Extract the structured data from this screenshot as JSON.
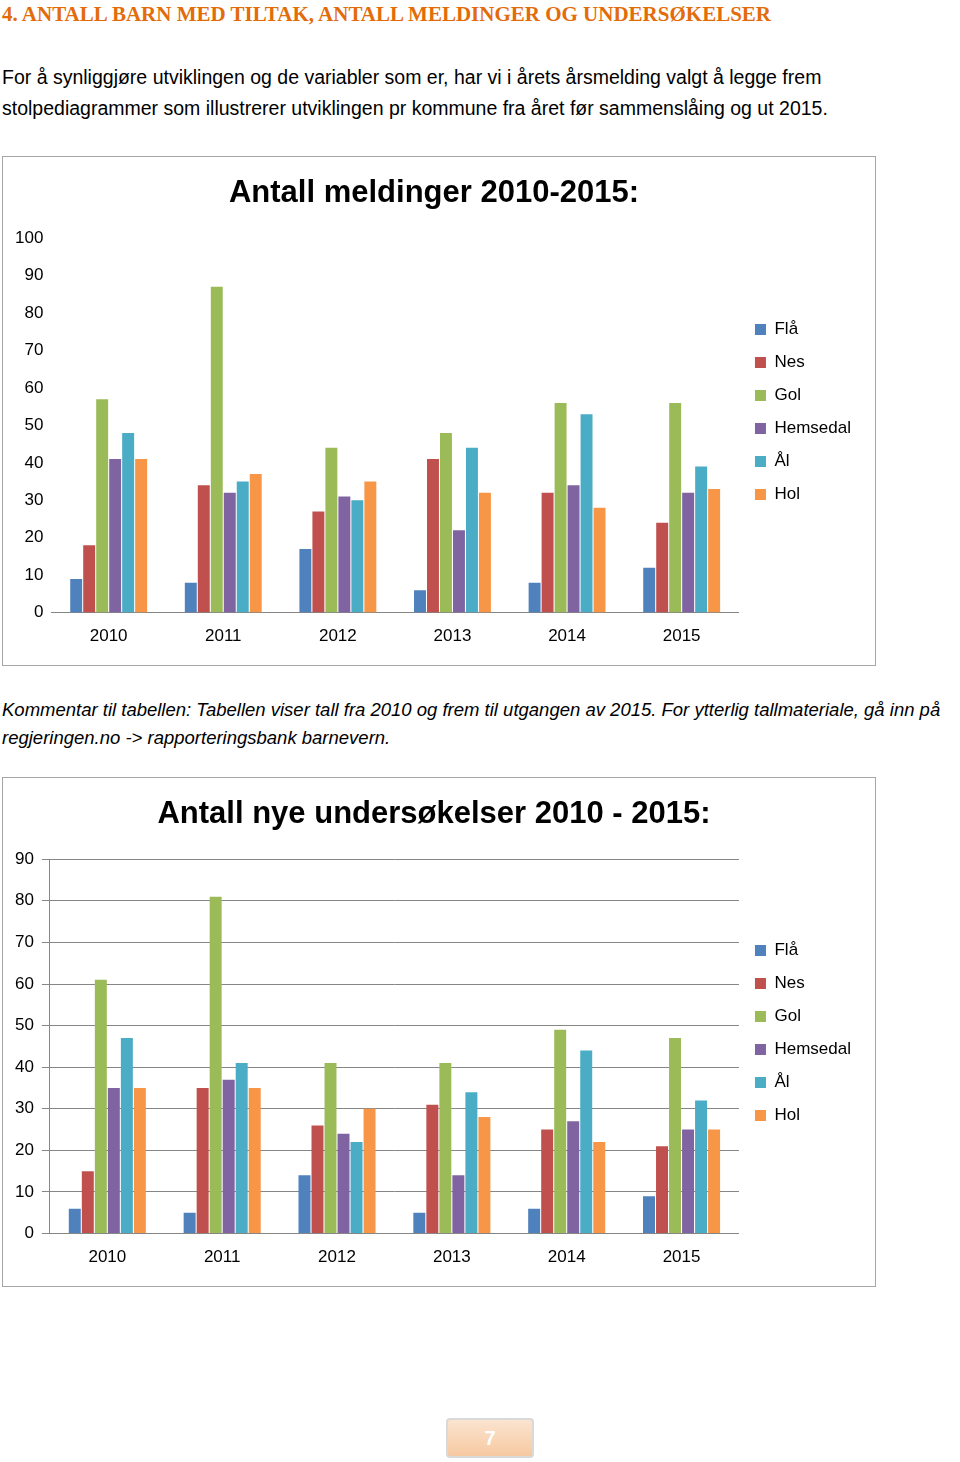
{
  "heading": "4. ANTALL BARN MED TILTAK, ANTALL MELDINGER OG UNDERSØKELSER",
  "intro": "For å synliggjøre utviklingen og de variabler som er, har vi i årets årsmelding valgt å legge frem stolpediagrammer som illustrerer utviklingen pr kommune fra året før sammenslåing og ut 2015.",
  "chart_data": [
    {
      "type": "bar",
      "title": "Antall meldinger 2010-2015:",
      "categories": [
        "2010",
        "2011",
        "2012",
        "2013",
        "2014",
        "2015"
      ],
      "series": [
        {
          "name": "Flå",
          "color": "#4f81bd",
          "values": [
            9,
            8,
            17,
            6,
            8,
            12
          ]
        },
        {
          "name": "Nes",
          "color": "#c0504d",
          "values": [
            18,
            34,
            27,
            41,
            32,
            24
          ]
        },
        {
          "name": "Gol",
          "color": "#9bbb59",
          "values": [
            57,
            87,
            44,
            48,
            56,
            56
          ]
        },
        {
          "name": "Hemsedal",
          "color": "#8064a2",
          "values": [
            41,
            32,
            31,
            22,
            34,
            32
          ]
        },
        {
          "name": "Ål",
          "color": "#4bacc6",
          "values": [
            48,
            35,
            30,
            44,
            53,
            39
          ]
        },
        {
          "name": "Hol",
          "color": "#f79646",
          "values": [
            41,
            37,
            35,
            32,
            28,
            33
          ]
        }
      ],
      "ylim": [
        0,
        100
      ],
      "yticks": [
        0,
        10,
        20,
        30,
        40,
        50,
        60,
        70,
        80,
        90,
        100
      ],
      "grid": false,
      "legend": "right"
    },
    {
      "type": "bar",
      "title": "Antall nye undersøkelser 2010 - 2015:",
      "categories": [
        "2010",
        "2011",
        "2012",
        "2013",
        "2014",
        "2015"
      ],
      "series": [
        {
          "name": "Flå",
          "color": "#4f81bd",
          "values": [
            6,
            5,
            14,
            5,
            6,
            9
          ]
        },
        {
          "name": "Nes",
          "color": "#c0504d",
          "values": [
            15,
            35,
            26,
            31,
            25,
            21
          ]
        },
        {
          "name": "Gol",
          "color": "#9bbb59",
          "values": [
            61,
            81,
            41,
            41,
            49,
            47
          ]
        },
        {
          "name": "Hemsedal",
          "color": "#8064a2",
          "values": [
            35,
            37,
            24,
            14,
            27,
            25
          ]
        },
        {
          "name": "Ål",
          "color": "#4bacc6",
          "values": [
            47,
            41,
            22,
            34,
            44,
            32
          ]
        },
        {
          "name": "Hol",
          "color": "#f79646",
          "values": [
            35,
            35,
            30,
            28,
            22,
            25
          ]
        }
      ],
      "ylim": [
        0,
        90
      ],
      "yticks": [
        0,
        10,
        20,
        30,
        40,
        50,
        60,
        70,
        80,
        90
      ],
      "grid": true,
      "legend": "right"
    }
  ],
  "comment": "Kommentar til tabellen: Tabellen viser tall fra 2010 og frem til utgangen av 2015. For ytterlig tallmateriale, gå inn på regjeringen.no -> rapporteringsbank barnevern.",
  "page_number": "7"
}
